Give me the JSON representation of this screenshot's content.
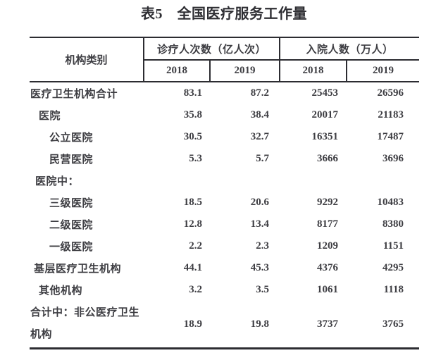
{
  "title": "表5　全国医疗服务工作量",
  "table": {
    "corner_header": "机构类别",
    "group_headers": {
      "visits": "诊疗人次数（亿人次）",
      "admissions": "入院人数（万人）"
    },
    "year_headers": [
      "2018",
      "2019",
      "2018",
      "2019"
    ],
    "rows": [
      {
        "label": "医疗卫生机构合计",
        "values": [
          "83.1",
          "87.2",
          "25453",
          "26596"
        ]
      },
      {
        "label": "医院",
        "values": [
          "35.8",
          "38.4",
          "20017",
          "21183"
        ]
      },
      {
        "label": "公立医院",
        "values": [
          "30.5",
          "32.7",
          "16351",
          "17487"
        ]
      },
      {
        "label": "民营医院",
        "values": [
          "5.3",
          "5.7",
          "3666",
          "3696"
        ]
      },
      {
        "label": "医院中：",
        "values": [
          "",
          "",
          "",
          ""
        ]
      },
      {
        "label": "三级医院",
        "values": [
          "18.5",
          "20.6",
          "9292",
          "10483"
        ]
      },
      {
        "label": "二级医院",
        "values": [
          "12.8",
          "13.4",
          "8177",
          "8380"
        ]
      },
      {
        "label": "一级医院",
        "values": [
          "2.2",
          "2.3",
          "1209",
          "1151"
        ]
      },
      {
        "label": "基层医疗卫生机构",
        "values": [
          "44.1",
          "45.3",
          "4376",
          "4295"
        ]
      },
      {
        "label": "其他机构",
        "values": [
          "3.2",
          "3.5",
          "1061",
          "1118"
        ]
      },
      {
        "label": "合计中：非公医疗卫生机构",
        "values": [
          "18.9",
          "19.8",
          "3737",
          "3765"
        ]
      }
    ],
    "text_color": "#3d3d42",
    "line_color": "#2c2c31"
  }
}
